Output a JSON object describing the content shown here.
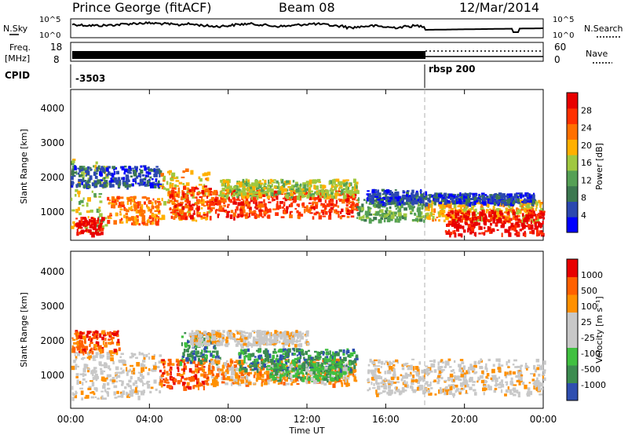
{
  "header": {
    "station": "Prince George (fitACF)",
    "beam": "Beam 08",
    "date": "12/Mar/2014"
  },
  "top_panels": {
    "nsky_label": "N.Sky",
    "nsky_ticks": [
      "10^5",
      "10^0"
    ],
    "nsearch_label": "N.Search",
    "nsearch_ticks": [
      "10^5",
      "10^0"
    ],
    "freq_label_1": "Freq.",
    "freq_label_2": "[MHz]",
    "freq_ticks": [
      "18",
      "8"
    ],
    "nave_label": "Nave",
    "nave_ticks": [
      "60",
      "0"
    ],
    "cpid_label": "CPID",
    "cpid_values": [
      "-3503",
      "rbsp 200"
    ],
    "cpid_change_time": "18:00"
  },
  "xaxis": {
    "label": "Time UT",
    "ticks": [
      "00:00",
      "04:00",
      "08:00",
      "12:00",
      "16:00",
      "20:00",
      "00:00"
    ]
  },
  "colors": {
    "power": [
      "#0000ff",
      "#2c48b0",
      "#3c7850",
      "#55a055",
      "#a0c840",
      "#ffb000",
      "#ff7000",
      "#ff3000",
      "#e80000"
    ],
    "velocity": [
      "#e80000",
      "#ff6000",
      "#ff9000",
      "#c8c8c8",
      "#c8c8c8",
      "#40c040",
      "#3c8c50",
      "#2f4fb0"
    ],
    "gray_scatter": "#c8c8c8"
  },
  "chart_data": [
    {
      "type": "heatmap",
      "panel": "power",
      "ylabel": "Slant Range [km]",
      "xlabel": "",
      "yticks": [
        "1000",
        "2000",
        "3000",
        "4000"
      ],
      "ylim": [
        200,
        4600
      ],
      "xlim_hours": [
        0,
        24
      ],
      "colorbar_label": "Power [dB]",
      "colorbar_ticks": [
        "4",
        "8",
        "12",
        "16",
        "20",
        "24",
        "28"
      ],
      "colorbar_range": [
        0,
        32
      ],
      "scatter_bands": [
        {
          "start_h": 0.0,
          "end_h": 1.8,
          "lo_km": 400,
          "hi_km": 2600,
          "color_idx": 4
        },
        {
          "start_h": 0.2,
          "end_h": 1.6,
          "lo_km": 400,
          "hi_km": 900,
          "color_idx": 8
        },
        {
          "start_h": 0.0,
          "end_h": 4.5,
          "lo_km": 1800,
          "hi_km": 2400,
          "color_idx": 1
        },
        {
          "start_h": 1.8,
          "end_h": 4.5,
          "lo_km": 700,
          "hi_km": 1500,
          "color_idx": 6
        },
        {
          "start_h": 4.5,
          "end_h": 7.0,
          "lo_km": 800,
          "hi_km": 2300,
          "color_idx": 5
        },
        {
          "start_h": 5.0,
          "end_h": 7.0,
          "lo_km": 900,
          "hi_km": 1800,
          "color_idx": 7
        },
        {
          "start_h": 7.0,
          "end_h": 14.5,
          "lo_km": 900,
          "hi_km": 1700,
          "color_idx": 7
        },
        {
          "start_h": 7.5,
          "end_h": 14.5,
          "lo_km": 1500,
          "hi_km": 2000,
          "color_idx": 4
        },
        {
          "start_h": 14.5,
          "end_h": 18.0,
          "lo_km": 800,
          "hi_km": 1500,
          "color_idx": 3
        },
        {
          "start_h": 15.0,
          "end_h": 18.0,
          "lo_km": 1300,
          "hi_km": 1700,
          "color_idx": 1
        },
        {
          "start_h": 18.0,
          "end_h": 24.0,
          "lo_km": 800,
          "hi_km": 1400,
          "color_idx": 5
        },
        {
          "start_h": 19.0,
          "end_h": 24.0,
          "lo_km": 400,
          "hi_km": 1100,
          "color_idx": 8
        },
        {
          "start_h": 18.0,
          "end_h": 23.5,
          "lo_km": 1300,
          "hi_km": 1600,
          "color_idx": 1
        }
      ]
    },
    {
      "type": "heatmap",
      "panel": "velocity",
      "ylabel": "Slant Range [km]",
      "xlabel": "Time UT",
      "yticks": [
        "1000",
        "2000",
        "3000",
        "4000"
      ],
      "ylim": [
        200,
        4600
      ],
      "xlim_hours": [
        0,
        24
      ],
      "colorbar_label": "Velocity [m s⁻¹]",
      "colorbar_ticks": [
        "1000",
        "500",
        "100",
        "25",
        "-25",
        "-100",
        "-500",
        "-1000"
      ],
      "scatter_bands": [
        {
          "start_h": 0.0,
          "end_h": 4.5,
          "lo_km": 500,
          "hi_km": 1800,
          "color_idx": 3
        },
        {
          "start_h": 0.0,
          "end_h": 2.5,
          "lo_km": 1800,
          "hi_km": 2400,
          "color_idx": 1
        },
        {
          "start_h": 4.5,
          "end_h": 7.0,
          "lo_km": 800,
          "hi_km": 1600,
          "color_idx": 1
        },
        {
          "start_h": 5.5,
          "end_h": 7.5,
          "lo_km": 1500,
          "hi_km": 2400,
          "color_idx": 6
        },
        {
          "start_h": 7.0,
          "end_h": 14.5,
          "lo_km": 900,
          "hi_km": 1600,
          "color_idx": 2
        },
        {
          "start_h": 8.5,
          "end_h": 14.5,
          "lo_km": 1300,
          "hi_km": 1900,
          "color_idx": 6
        },
        {
          "start_h": 10.0,
          "end_h": 14.0,
          "lo_km": 1000,
          "hi_km": 1500,
          "color_idx": 5
        },
        {
          "start_h": 6.0,
          "end_h": 12.0,
          "lo_km": 2000,
          "hi_km": 2400,
          "color_idx": 3
        },
        {
          "start_h": 15.0,
          "end_h": 24.0,
          "lo_km": 600,
          "hi_km": 1600,
          "color_idx": 3
        }
      ]
    }
  ]
}
